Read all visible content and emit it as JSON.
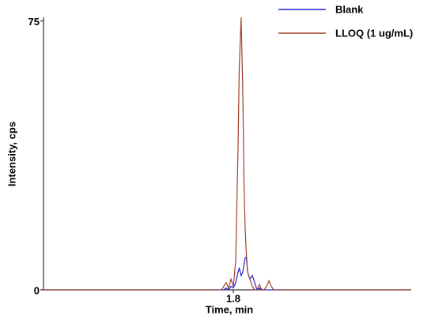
{
  "chart_data": {
    "type": "line",
    "x_label": "Time, min",
    "y_label": "Intensity, cps",
    "x": [
      1.0,
      1.6,
      1.75,
      1.76,
      1.77,
      1.78,
      1.79,
      1.8,
      1.81,
      1.82,
      1.825,
      1.833,
      1.84,
      1.845,
      1.85,
      1.855,
      1.86,
      1.87,
      1.88,
      1.89,
      1.9,
      1.91,
      1.92,
      1.93,
      1.94,
      1.95,
      1.96,
      1.97,
      1.98,
      2.0,
      2.55
    ],
    "series": [
      {
        "name": "Blank",
        "color": "#2020d0",
        "values": [
          0,
          0,
          0,
          0,
          0.5,
          0,
          1,
          0.5,
          2,
          5,
          6,
          4,
          5,
          7,
          9,
          9,
          5,
          3,
          4,
          2,
          0,
          0.5,
          0,
          0,
          0,
          0,
          0,
          0,
          0,
          0,
          0
        ]
      },
      {
        "name": "LLOQ (1 ug/mL)",
        "color": "#a0402a",
        "values": [
          0,
          0,
          0,
          1,
          2,
          0.5,
          3,
          1,
          8,
          40,
          62,
          76,
          55,
          30,
          17,
          10,
          5,
          3,
          1,
          0,
          0,
          1.5,
          0,
          0,
          1,
          2.5,
          1,
          0,
          0,
          0,
          0
        ]
      }
    ],
    "xlim": [
      1.0,
      2.55
    ],
    "xticks": [
      1.8
    ],
    "ylim": [
      0,
      76
    ],
    "yticks": [
      0,
      75
    ],
    "legend": "top-right"
  }
}
